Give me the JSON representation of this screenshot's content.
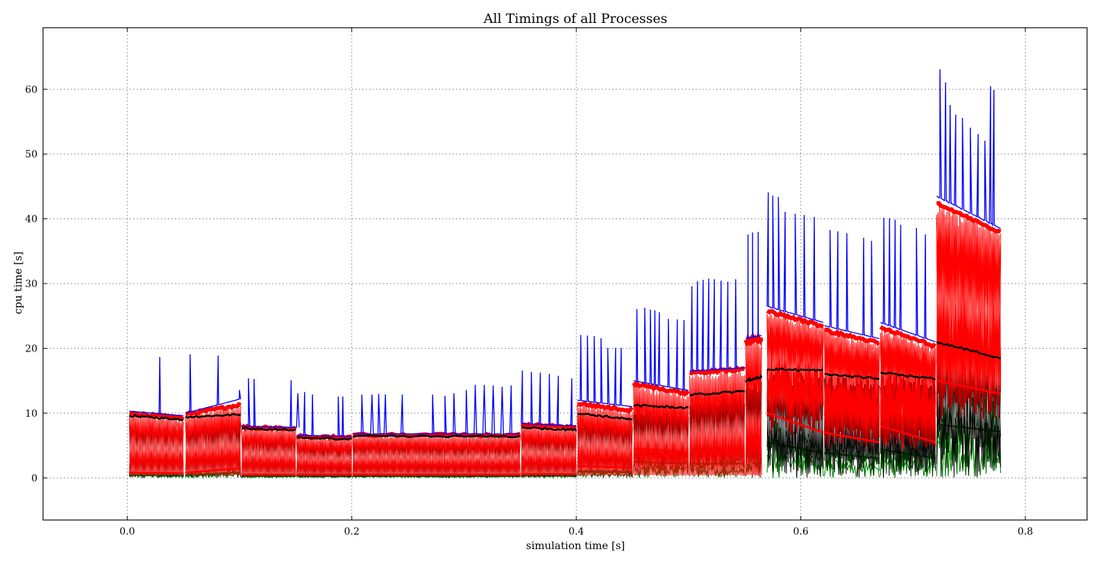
{
  "chart_data": {
    "type": "line",
    "title": "All Timings of all Processes",
    "xlabel": "simulation time [s]",
    "ylabel": "cpu time [s]",
    "xlim": [
      -0.075,
      0.855
    ],
    "ylim": [
      -6.5,
      69.5
    ],
    "xticks": [
      0.0,
      0.2,
      0.4,
      0.6,
      0.8
    ],
    "xtick_labels": [
      "0.0",
      "0.2",
      "0.4",
      "0.6",
      "0.8"
    ],
    "yticks": [
      0,
      10,
      20,
      30,
      40,
      50,
      60
    ],
    "ytick_labels": [
      "0",
      "10",
      "20",
      "30",
      "40",
      "50",
      "60"
    ],
    "grid": true,
    "legend": "none",
    "colors": {
      "blue": "#0000ff",
      "red": "#ff0000",
      "black": "#000000",
      "green": "#008000"
    },
    "segments": [
      {
        "x": [
          0.002,
          0.05
        ],
        "blue_level": [
          10.3,
          9.6
        ],
        "red_level": [
          10.0,
          9.2
        ],
        "black_level": [
          9.6,
          9.0
        ],
        "low_level": [
          0.8,
          0.7
        ],
        "spikes": [
          [
            0.029,
            18.6
          ]
        ]
      },
      {
        "x": [
          0.052,
          0.101
        ],
        "blue_level": [
          10.0,
          12.2
        ],
        "red_level": [
          9.8,
          11.3
        ],
        "black_level": [
          9.4,
          9.8
        ],
        "low_level": [
          0.8,
          1.5
        ],
        "spikes": [
          [
            0.056,
            19.0
          ],
          [
            0.081,
            18.8
          ],
          [
            0.1,
            13.5
          ]
        ]
      },
      {
        "x": [
          0.102,
          0.15
        ],
        "blue_level": [
          8.0,
          7.8
        ],
        "red_level": [
          7.8,
          7.6
        ],
        "black_level": [
          7.6,
          7.4
        ],
        "low_level": [
          0.5,
          0.5
        ],
        "spikes": [
          [
            0.108,
            15.3
          ],
          [
            0.113,
            15.2
          ],
          [
            0.146,
            15.0
          ],
          [
            0.152,
            13.0
          ]
        ]
      },
      {
        "x": [
          0.151,
          0.2
        ],
        "blue_level": [
          6.6,
          6.4
        ],
        "red_level": [
          6.4,
          6.2
        ],
        "black_level": [
          6.2,
          6.0
        ],
        "low_level": [
          0.5,
          0.5
        ],
        "spikes": [
          [
            0.158,
            13.2
          ],
          [
            0.165,
            12.8
          ],
          [
            0.188,
            12.5
          ],
          [
            0.192,
            12.5
          ]
        ]
      },
      {
        "x": [
          0.201,
          0.35
        ],
        "blue_level": [
          6.8,
          6.8
        ],
        "red_level": [
          6.6,
          6.6
        ],
        "black_level": [
          6.4,
          6.4
        ],
        "low_level": [
          0.5,
          0.5
        ],
        "spikes": [
          [
            0.209,
            12.8
          ],
          [
            0.218,
            12.8
          ],
          [
            0.224,
            12.9
          ],
          [
            0.23,
            12.8
          ],
          [
            0.245,
            12.8
          ],
          [
            0.272,
            12.8
          ],
          [
            0.283,
            12.6
          ],
          [
            0.291,
            13.0
          ],
          [
            0.302,
            13.5
          ],
          [
            0.31,
            14.3
          ],
          [
            0.318,
            14.3
          ],
          [
            0.326,
            14.2
          ],
          [
            0.334,
            14.0
          ],
          [
            0.342,
            14.2
          ]
        ]
      },
      {
        "x": [
          0.351,
          0.4
        ],
        "blue_level": [
          8.4,
          8.0
        ],
        "red_level": [
          8.2,
          7.8
        ],
        "black_level": [
          7.8,
          7.4
        ],
        "low_level": [
          0.6,
          0.6
        ],
        "spikes": [
          [
            0.352,
            16.5
          ],
          [
            0.36,
            16.3
          ],
          [
            0.368,
            16.2
          ],
          [
            0.376,
            16.0
          ],
          [
            0.384,
            15.7
          ],
          [
            0.396,
            15.3
          ]
        ]
      },
      {
        "x": [
          0.401,
          0.45
        ],
        "blue_level": [
          12.0,
          11.0
        ],
        "red_level": [
          11.5,
          10.4
        ],
        "black_level": [
          10.0,
          9.0
        ],
        "low_level": [
          1.8,
          1.6
        ],
        "spikes": [
          [
            0.404,
            22.0
          ],
          [
            0.41,
            21.9
          ],
          [
            0.416,
            21.8
          ],
          [
            0.422,
            21.5
          ],
          [
            0.428,
            20.0
          ],
          [
            0.435,
            20.0
          ],
          [
            0.44,
            20.0
          ]
        ]
      },
      {
        "x": [
          0.451,
          0.5
        ],
        "blue_level": [
          15.0,
          13.5
        ],
        "red_level": [
          14.5,
          13.0
        ],
        "black_level": [
          11.2,
          10.8
        ],
        "low_level": [
          4.5,
          4.0
        ],
        "spikes": [
          [
            0.454,
            26.0
          ],
          [
            0.461,
            26.2
          ],
          [
            0.466,
            25.9
          ],
          [
            0.47,
            25.8
          ],
          [
            0.474,
            25.5
          ],
          [
            0.482,
            24.5
          ],
          [
            0.49,
            24.4
          ],
          [
            0.496,
            24.3
          ]
        ]
      },
      {
        "x": [
          0.501,
          0.55
        ],
        "blue_level": [
          16.5,
          17.0
        ],
        "red_level": [
          16.2,
          16.8
        ],
        "black_level": [
          12.8,
          13.4
        ],
        "low_level": [
          4.0,
          4.0
        ],
        "spikes": [
          [
            0.503,
            29.5
          ],
          [
            0.508,
            30.3
          ],
          [
            0.513,
            30.5
          ],
          [
            0.518,
            30.7
          ],
          [
            0.523,
            30.6
          ],
          [
            0.529,
            30.4
          ],
          [
            0.535,
            30.2
          ],
          [
            0.542,
            30.6
          ]
        ]
      },
      {
        "x": [
          0.551,
          0.565
        ],
        "blue_level": [
          21.5,
          22.0
        ],
        "red_level": [
          21.0,
          21.5
        ],
        "black_level": [
          15.0,
          15.6
        ],
        "low_level": [
          6.0,
          6.5
        ],
        "spikes": [
          [
            0.553,
            37.5
          ],
          [
            0.557,
            37.8
          ],
          [
            0.562,
            37.9
          ]
        ]
      },
      {
        "x": [
          0.57,
          0.62
        ],
        "blue_level": [
          26.5,
          24.0
        ],
        "red_level": [
          25.8,
          23.4
        ],
        "black_level": [
          16.8,
          16.6
        ],
        "low_level": [
          10.0,
          7.0
        ],
        "spikes": [
          [
            0.571,
            44.0
          ],
          [
            0.575,
            43.5
          ],
          [
            0.58,
            43.3
          ],
          [
            0.586,
            41.0
          ],
          [
            0.595,
            40.7
          ],
          [
            0.603,
            40.5
          ],
          [
            0.612,
            40.2
          ]
        ]
      },
      {
        "x": [
          0.621,
          0.67
        ],
        "blue_level": [
          23.5,
          21.5
        ],
        "red_level": [
          22.8,
          20.8
        ],
        "black_level": [
          16.0,
          15.3
        ],
        "low_level": [
          7.0,
          5.5
        ],
        "spikes": [
          [
            0.626,
            38.2
          ],
          [
            0.633,
            38.0
          ],
          [
            0.641,
            37.7
          ],
          [
            0.656,
            37.0
          ],
          [
            0.663,
            36.5
          ]
        ]
      },
      {
        "x": [
          0.671,
          0.72
        ],
        "blue_level": [
          24.0,
          21.0
        ],
        "red_level": [
          23.2,
          20.3
        ],
        "black_level": [
          16.2,
          15.3
        ],
        "low_level": [
          8.0,
          5.5
        ],
        "spikes": [
          [
            0.674,
            40.1
          ],
          [
            0.679,
            40.0
          ],
          [
            0.684,
            39.8
          ],
          [
            0.689,
            39.0
          ],
          [
            0.703,
            38.5
          ],
          [
            0.711,
            37.5
          ]
        ]
      },
      {
        "x": [
          0.721,
          0.778
        ],
        "blue_level": [
          43.5,
          38.5
        ],
        "red_level": [
          42.5,
          37.8
        ],
        "black_level": [
          21.0,
          18.5
        ],
        "low_level": [
          15.0,
          13.0
        ],
        "spikes": [
          [
            0.724,
            63.0
          ],
          [
            0.729,
            61.0
          ],
          [
            0.733,
            57.5
          ],
          [
            0.738,
            56.0
          ],
          [
            0.744,
            55.5
          ],
          [
            0.751,
            54.0
          ],
          [
            0.758,
            53.0
          ],
          [
            0.764,
            52.0
          ],
          [
            0.769,
            60.4
          ],
          [
            0.772,
            59.8
          ]
        ]
      }
    ]
  }
}
